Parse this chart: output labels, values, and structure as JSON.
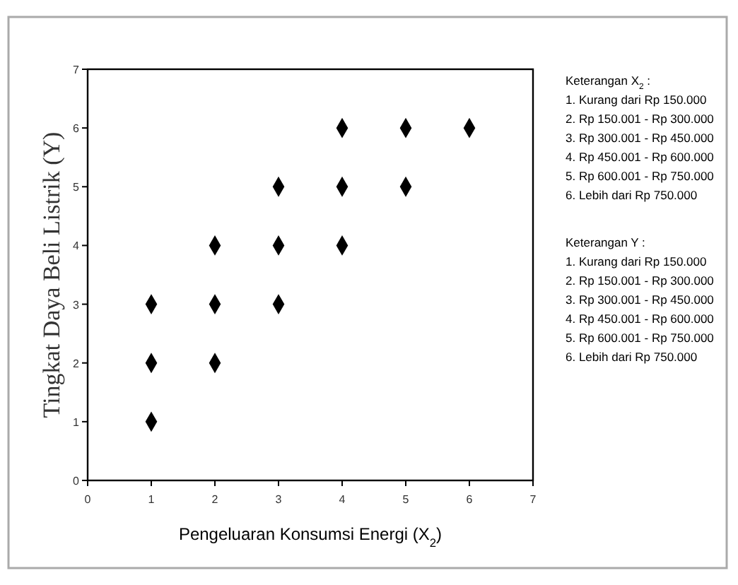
{
  "chart_data": {
    "type": "scatter",
    "xlabel": "Pengeluaran Konsumsi Energi (X$_{2}$)",
    "ylabel": "Tingkat Daya Beli Listrik (Y)",
    "x": [
      1,
      1,
      1,
      2,
      2,
      2,
      3,
      3,
      3,
      4,
      4,
      4,
      5,
      5,
      6
    ],
    "values": [
      1,
      2,
      3,
      2,
      3,
      4,
      3,
      4,
      5,
      4,
      5,
      6,
      5,
      6,
      6
    ],
    "color": "#000000",
    "marker": "diamond",
    "xlim": [
      0,
      7
    ],
    "xticks": [
      0,
      1,
      2,
      3,
      4,
      5,
      6,
      7
    ],
    "ylim": [
      0,
      7
    ],
    "yticks": [
      0,
      1,
      2,
      3,
      4,
      5,
      6,
      7
    ],
    "grid": false,
    "annotations": [
      "Keterangan X$_{2}$ :",
      "1. Kurang dari Rp 150.000",
      "2. Rp 150.001 - Rp 300.000",
      "3. Rp 300.001 - Rp 450.000",
      "4. Rp 450.001 - Rp 600.000",
      "5. Rp 600.001 - Rp 750.000",
      "6. Lebih dari Rp 750.000",
      "Keterangan Y :",
      "1. Kurang dari Rp 150.000",
      "2. Rp 150.001 - Rp 300.000",
      "3. Rp 300.001 - Rp 450.000",
      "4. Rp 450.001 - Rp 600.000",
      "5. Rp 600.001 - Rp 750.000",
      "6. Lebih dari Rp 750.000"
    ]
  }
}
